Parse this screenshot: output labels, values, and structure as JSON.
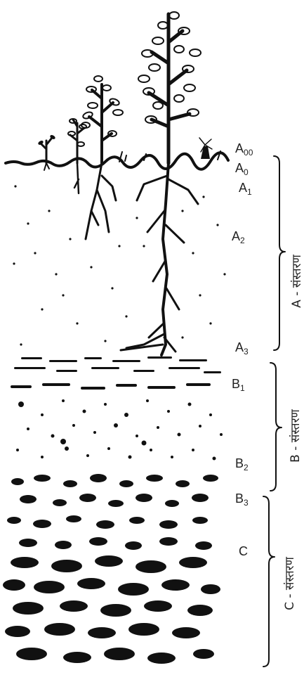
{
  "horizon_labels": [
    {
      "id": "a00",
      "main": "A",
      "sub": "00"
    },
    {
      "id": "a0",
      "main": "A",
      "sub": "0"
    },
    {
      "id": "a1",
      "main": "A",
      "sub": "1"
    },
    {
      "id": "a2",
      "main": "A",
      "sub": "2"
    },
    {
      "id": "a3",
      "main": "A",
      "sub": "3"
    },
    {
      "id": "b1",
      "main": "B",
      "sub": "1"
    },
    {
      "id": "b2",
      "main": "B",
      "sub": "2"
    },
    {
      "id": "b3",
      "main": "B",
      "sub": "3"
    },
    {
      "id": "c",
      "main": "C",
      "sub": ""
    }
  ],
  "zones": [
    {
      "id": "a",
      "label": "A - संस्तरण"
    },
    {
      "id": "b",
      "label": "B - संस्तरण"
    },
    {
      "id": "c",
      "label": "C - संस्तरण"
    }
  ]
}
